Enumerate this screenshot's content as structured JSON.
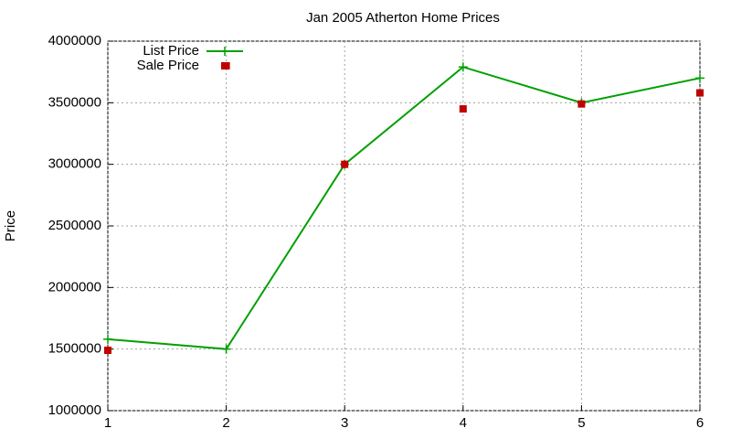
{
  "chart_data": {
    "type": "line",
    "title": "Jan 2005 Atherton Home Prices",
    "y_label": "Price",
    "x": [
      1,
      2,
      3,
      4,
      5,
      6
    ],
    "series": [
      {
        "name": "List Price",
        "color": "#00a000",
        "style": "linespoints",
        "values": [
          1580000,
          1500000,
          3000000,
          3790000,
          3500000,
          3700000
        ]
      },
      {
        "name": "Sale Price",
        "color": "#c00000",
        "style": "points",
        "values": [
          1490000,
          3800000,
          3000000,
          3450000,
          3490000,
          3580000
        ]
      }
    ],
    "xlim": [
      1,
      6
    ],
    "xticks": [
      1,
      2,
      3,
      4,
      5,
      6
    ],
    "ylim": [
      1000000,
      4000000
    ],
    "yticks": [
      1000000,
      1500000,
      2000000,
      2500000,
      3000000,
      3500000,
      4000000
    ],
    "grid": true,
    "legend": "top-left"
  }
}
